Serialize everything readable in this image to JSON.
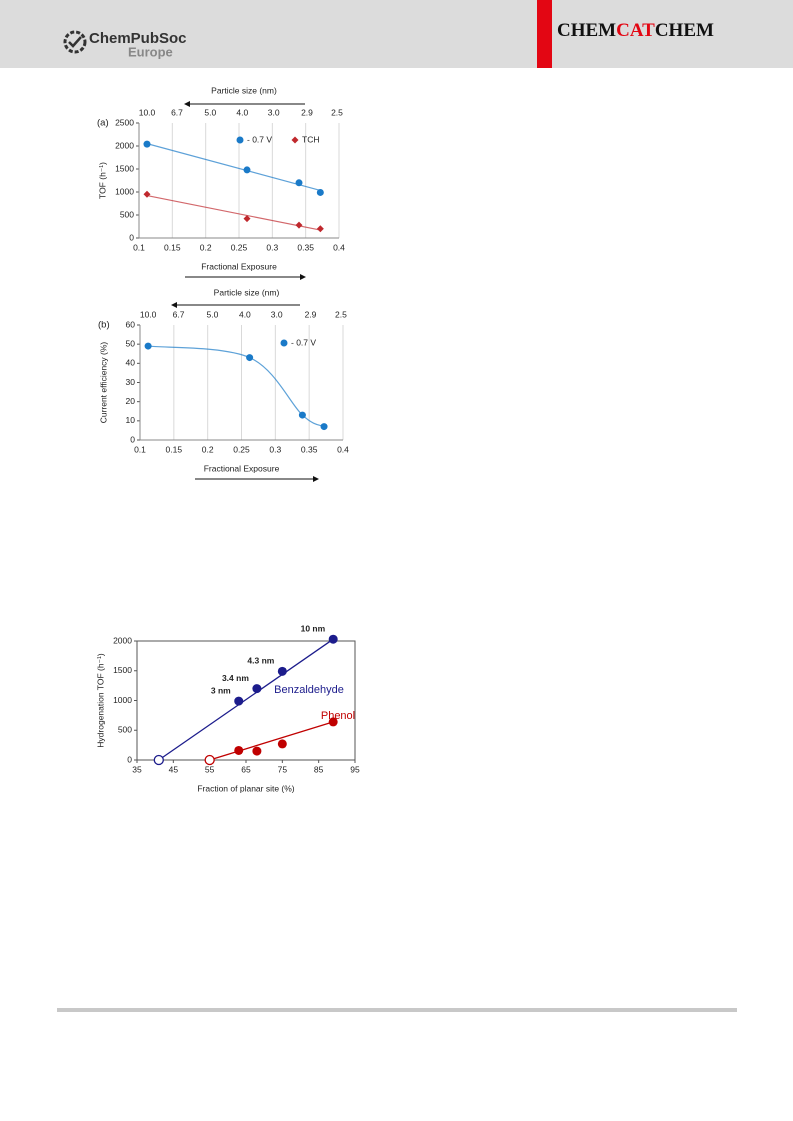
{
  "header": {
    "publisher": "ChemPubSoc",
    "publisher_region": "Europe",
    "journal_prefix": "CHEM",
    "journal_middle": "CAT",
    "journal_suffix": "CHEM"
  },
  "chart_data": [
    {
      "type": "scatter",
      "panel_label": "(a)",
      "x_label": "Fractional Exposure",
      "y_label": "TOF (h⁻¹)",
      "top_axis_label": "Particle size (nm)",
      "top_ticks": [
        {
          "value": 0.112,
          "label": "10.0"
        },
        {
          "value": 0.157,
          "label": "6.7"
        },
        {
          "value": 0.207,
          "label": "5.0"
        },
        {
          "value": 0.255,
          "label": "4.0"
        },
        {
          "value": 0.302,
          "label": "3.0"
        },
        {
          "value": 0.352,
          "label": "2.9"
        },
        {
          "value": 0.397,
          "label": "2.5"
        }
      ],
      "xlim": [
        0.1,
        0.4
      ],
      "xticks": [
        0.1,
        0.15,
        0.2,
        0.25,
        0.3,
        0.35,
        0.4
      ],
      "ylim": [
        0,
        2500
      ],
      "yticks": [
        0,
        500,
        1000,
        1500,
        2000,
        2500
      ],
      "grid": "x",
      "series": [
        {
          "name": "- 0.7 V",
          "color": "#1a7ac8",
          "marker": "circle",
          "fit": "linear",
          "x": [
            0.112,
            0.262,
            0.34,
            0.372
          ],
          "values": [
            2040,
            1480,
            1200,
            990
          ]
        },
        {
          "name": "TCH",
          "color": "#c0282d",
          "marker": "diamond",
          "fit": "linear",
          "x": [
            0.112,
            0.262,
            0.34,
            0.372
          ],
          "values": [
            950,
            420,
            280,
            200
          ]
        }
      ]
    },
    {
      "type": "scatter",
      "panel_label": "(b)",
      "x_label": "Fractional Exposure",
      "y_label": "Current efficiency (%)",
      "top_axis_label": "Particle size (nm)",
      "top_ticks": [
        {
          "value": 0.112,
          "label": "10.0"
        },
        {
          "value": 0.157,
          "label": "6.7"
        },
        {
          "value": 0.207,
          "label": "5.0"
        },
        {
          "value": 0.255,
          "label": "4.0"
        },
        {
          "value": 0.302,
          "label": "3.0"
        },
        {
          "value": 0.352,
          "label": "2.9"
        },
        {
          "value": 0.397,
          "label": "2.5"
        }
      ],
      "xlim": [
        0.1,
        0.4
      ],
      "xticks": [
        0.1,
        0.15,
        0.2,
        0.25,
        0.3,
        0.35,
        0.4
      ],
      "ylim": [
        0,
        60
      ],
      "yticks": [
        0,
        10,
        20,
        30,
        40,
        50,
        60
      ],
      "grid": "x",
      "series": [
        {
          "name": "- 0.7 V",
          "color": "#1a7ac8",
          "marker": "circle",
          "fit": "smooth",
          "x": [
            0.112,
            0.262,
            0.34,
            0.372
          ],
          "values": [
            49,
            43,
            13,
            7
          ]
        }
      ]
    },
    {
      "type": "scatter",
      "x_label": "Fraction of planar site (%)",
      "y_label": "Hydrogenation TOF (h⁻¹)",
      "xlim": [
        35,
        95
      ],
      "xticks": [
        35,
        45,
        55,
        65,
        75,
        85,
        95
      ],
      "ylim": [
        0,
        2000
      ],
      "yticks": [
        0,
        500,
        1000,
        1500,
        2000
      ],
      "grid": "none",
      "series": [
        {
          "name": "Benzaldehyde",
          "color": "#1c1c8c",
          "marker": "circle",
          "fit": "line",
          "x": [
            41,
            63,
            68,
            75,
            89
          ],
          "values": [
            0,
            990,
            1200,
            1490,
            2030
          ],
          "hollow": [
            true,
            false,
            false,
            false,
            false
          ],
          "point_labels": [
            null,
            "3 nm",
            "3.4 nm",
            "4.3 nm",
            "10 nm"
          ]
        },
        {
          "name": "Phenol",
          "color": "#c00000",
          "marker": "circle",
          "fit": "line",
          "x": [
            55,
            63,
            68,
            75,
            89
          ],
          "values": [
            0,
            160,
            150,
            270,
            640
          ],
          "hollow": [
            true,
            false,
            false,
            false,
            false
          ]
        }
      ]
    }
  ]
}
